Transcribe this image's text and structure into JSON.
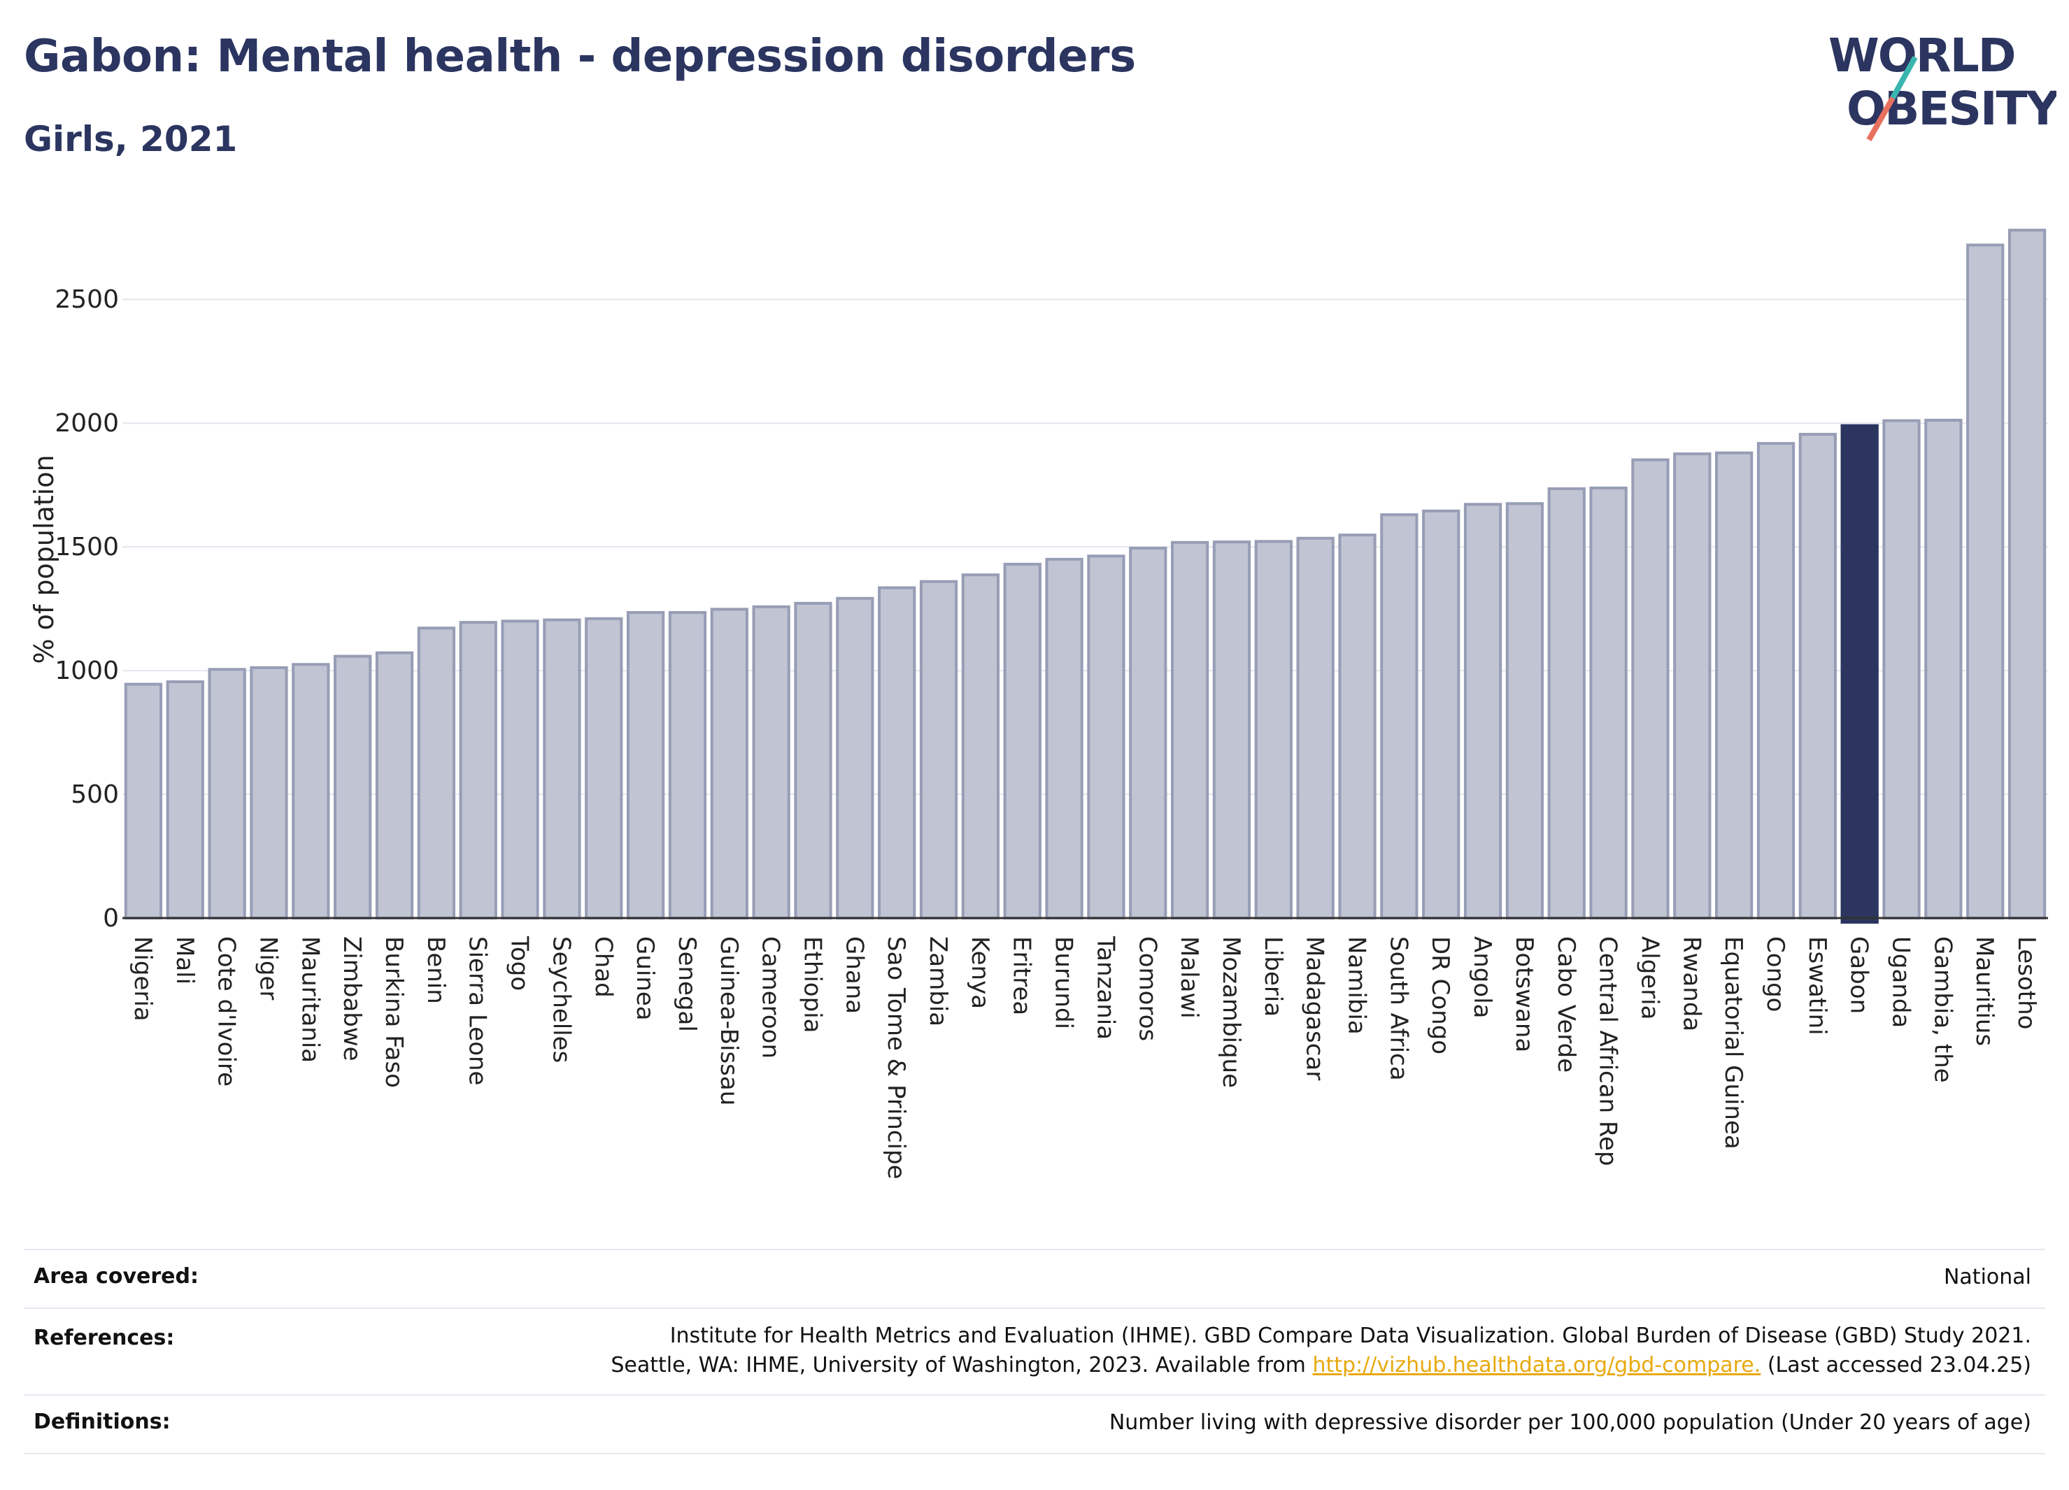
{
  "title": "Gabon: Mental health - depression disorders",
  "subtitle": "Girls, 2021",
  "logo": {
    "line1": "WORLD",
    "line2": "OBESITY",
    "accent_teal": "#3ab5b0",
    "accent_coral": "#e8705e"
  },
  "colors": {
    "bar": "#c0c4d3",
    "bar_border": "#979db5",
    "highlight": "#2b3560",
    "grid": "#e4e6ee"
  },
  "chart_data": {
    "type": "bar",
    "ylabel": "% of population",
    "ylim": [
      0,
      2820
    ],
    "yticks": [
      0,
      500,
      1000,
      1500,
      2000,
      2500
    ],
    "highlight": "Gabon",
    "categories": [
      "Nigeria",
      "Mali",
      "Cote d'Ivoire",
      "Niger",
      "Mauritania",
      "Zimbabwe",
      "Burkina Faso",
      "Benin",
      "Sierra Leone",
      "Togo",
      "Seychelles",
      "Chad",
      "Guinea",
      "Senegal",
      "Guinea-Bissau",
      "Cameroon",
      "Ethiopia",
      "Ghana",
      "Sao Tome & Principe",
      "Zambia",
      "Kenya",
      "Eritrea",
      "Burundi",
      "Tanzania",
      "Comoros",
      "Malawi",
      "Mozambique",
      "Liberia",
      "Madagascar",
      "Namibia",
      "South Africa",
      "DR Congo",
      "Angola",
      "Botswana",
      "Cabo Verde",
      "Central African Rep",
      "Algeria",
      "Rwanda",
      "Equatorial Guinea",
      "Congo",
      "Eswatini",
      "Gabon",
      "Uganda",
      "Gambia, the",
      "Mauritius",
      "Lesotho"
    ],
    "values": [
      945,
      955,
      1005,
      1012,
      1025,
      1058,
      1072,
      1172,
      1195,
      1200,
      1205,
      1210,
      1235,
      1235,
      1248,
      1258,
      1272,
      1292,
      1335,
      1360,
      1387,
      1430,
      1450,
      1463,
      1495,
      1518,
      1520,
      1522,
      1535,
      1548,
      1630,
      1645,
      1672,
      1675,
      1735,
      1738,
      1852,
      1876,
      1880,
      1918,
      1955,
      1990,
      2010,
      2012,
      2720,
      2780
    ]
  },
  "footer": {
    "area_label": "Area covered:",
    "area_value": "National",
    "ref_label": "References:",
    "ref_line1": "Institute for Health Metrics and Evaluation (IHME). GBD Compare Data Visualization. Global Burden of Disease (GBD) Study 2021.",
    "ref_line2_pre": "Seattle, WA: IHME, University of Washington, 2023. Available from ",
    "ref_link": "http://vizhub.healthdata.org/gbd-compare.",
    "ref_line2_post": " (Last accessed 23.04.25)",
    "def_label": "Definitions:",
    "def_value": "Number living with depressive disorder per 100,000 population (Under 20 years of age)"
  }
}
